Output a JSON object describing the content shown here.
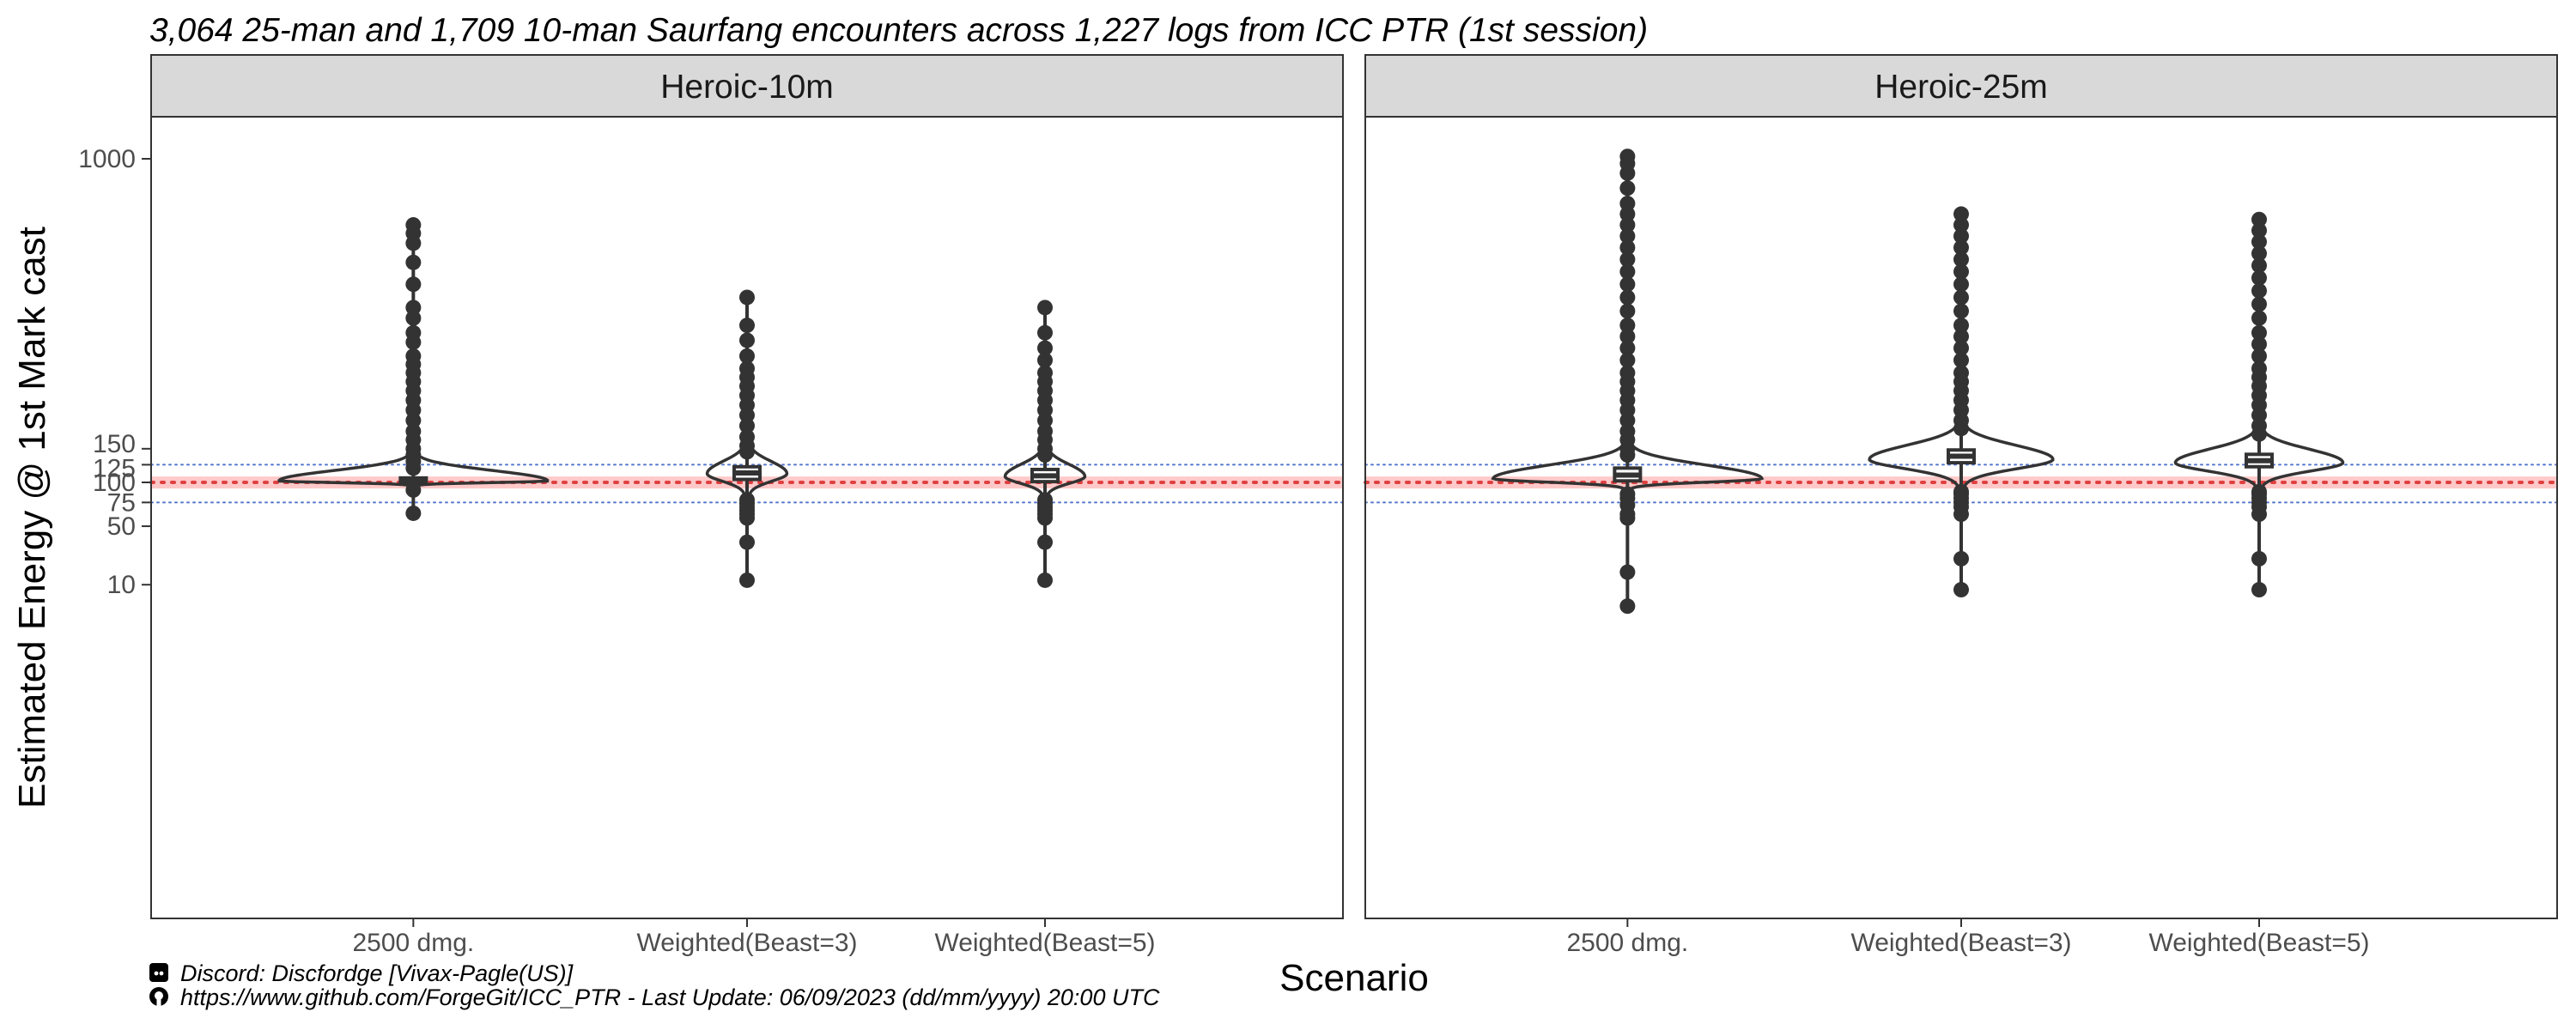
{
  "chart_data": {
    "type": "violin",
    "title": "3,064 25-man and 1,709 10-man Saurfang encounters across 1,227 logs from ICC PTR (1st session)",
    "xlabel": "Scenario",
    "ylabel": "Estimated Energy @ 1st Mark cast",
    "y_scale": "sqrt",
    "ylim": [
      0,
      1200
    ],
    "yticks": [
      10,
      50,
      75,
      100,
      125,
      150,
      1000
    ],
    "reference_lines": [
      {
        "y": 100,
        "style": "dotted",
        "color": "#e04040",
        "band": [
          92,
          108
        ],
        "band_color": "#ffc9c9"
      },
      {
        "y": 125,
        "style": "dotted",
        "color": "#5577cc"
      },
      {
        "y": 75,
        "style": "dotted",
        "color": "#5577cc"
      }
    ],
    "categories": [
      "2500 dmg.",
      "Weighted(Beast=3)",
      "Weighted(Beast=5)"
    ],
    "panels": [
      {
        "label": "Heroic-10m",
        "series": [
          {
            "category": "2500 dmg.",
            "median": 103,
            "q1": 100,
            "q3": 106,
            "range": [
              63,
              740
            ],
            "violin_peak": 102,
            "violin_width": 1.0,
            "violin_lower": 95,
            "outliers": [
              740,
              710,
              675,
              610,
              540,
              470,
              440,
              400,
              375,
              340,
              320,
              300,
              280,
              260,
              240,
              220,
              200,
              180,
              165,
              150,
              140,
              130,
              120,
              90,
              63
            ]
          },
          {
            "category": "Weighted(Beast=3)",
            "median": 113,
            "q1": 104,
            "q3": 122,
            "range": [
              12,
              500
            ],
            "violin_peak": 112,
            "violin_width": 0.29,
            "violin_lower": 78,
            "outliers": [
              500,
              420,
              380,
              340,
              310,
              290,
              270,
              250,
              230,
              210,
              190,
              170,
              155,
              145,
              78,
              74,
              70,
              66,
              62,
              58,
              36,
              12
            ]
          },
          {
            "category": "Weighted(Beast=5)",
            "median": 109,
            "q1": 101,
            "q3": 118,
            "range": [
              12,
              470
            ],
            "violin_peak": 108,
            "violin_width": 0.29,
            "violin_lower": 78,
            "outliers": [
              470,
              400,
              360,
              330,
              300,
              280,
              260,
              240,
              220,
              200,
              180,
              165,
              150,
              140,
              78,
              74,
              70,
              66,
              62,
              58,
              36,
              12
            ]
          }
        ]
      },
      {
        "label": "Heroic-25m",
        "series": [
          {
            "category": "2500 dmg.",
            "median": 110,
            "q1": 102,
            "q3": 120,
            "range": [
              3,
              1010
            ],
            "violin_peak": 105,
            "violin_width": 1.0,
            "violin_lower": 90,
            "outliers": [
              1010,
              980,
              940,
              880,
              820,
              780,
              740,
              700,
              660,
              620,
              580,
              540,
              500,
              460,
              420,
              390,
              360,
              330,
              300,
              280,
              260,
              240,
              220,
              200,
              180,
              165,
              150,
              140,
              85,
              80,
              72,
              62,
              58,
              16,
              3
            ]
          },
          {
            "category": "Weighted(Beast=3)",
            "median": 138,
            "q1": 128,
            "q3": 148,
            "range": [
              8,
              780
            ],
            "violin_peak": 133,
            "violin_width": 0.68,
            "violin_lower": 88,
            "outliers": [
              780,
              740,
              700,
              660,
              620,
              580,
              540,
              500,
              460,
              420,
              390,
              360,
              330,
              300,
              280,
              260,
              240,
              220,
              200,
              185,
              88,
              85,
              80,
              75,
              70,
              62,
              24,
              8
            ]
          },
          {
            "category": "Weighted(Beast=5)",
            "median": 131,
            "q1": 122,
            "q3": 141,
            "range": [
              8,
              760
            ],
            "violin_peak": 128,
            "violin_width": 0.62,
            "violin_lower": 88,
            "outliers": [
              760,
              720,
              680,
              640,
              600,
              560,
              520,
              480,
              440,
              400,
              370,
              340,
              310,
              290,
              270,
              250,
              230,
              210,
              190,
              175,
              88,
              85,
              80,
              75,
              70,
              62,
              24,
              8
            ]
          }
        ]
      }
    ],
    "captions": [
      {
        "icon": "discord-icon",
        "text": "Discord: Discfordge [Vivax-Pagle(US)]"
      },
      {
        "icon": "github-icon",
        "text": "https://www.github.com/ForgeGit/ICC_PTR - Last Update: 06/09/2023 (dd/mm/yyyy) 20:00 UTC"
      }
    ]
  }
}
